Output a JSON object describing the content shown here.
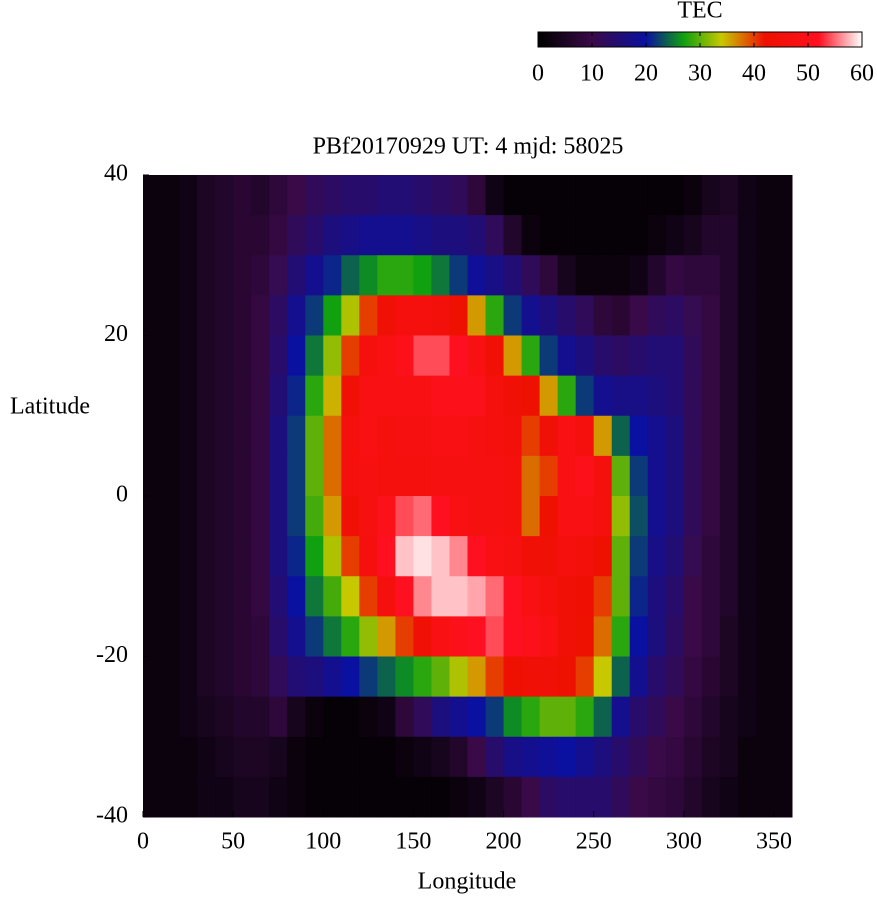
{
  "chart_data": {
    "type": "heatmap",
    "title": "PBf20170929  UT: 4  mjd: 58025",
    "x_label": "Longitude",
    "y_label": "Latitude",
    "colorbar_label": "TEC",
    "x": [
      0,
      10,
      20,
      30,
      40,
      50,
      60,
      70,
      80,
      90,
      100,
      110,
      120,
      130,
      140,
      150,
      160,
      170,
      180,
      190,
      200,
      210,
      220,
      230,
      240,
      250,
      260,
      270,
      280,
      290,
      300,
      310,
      320,
      330,
      340,
      350,
      360
    ],
    "y": [
      40,
      35,
      30,
      25,
      20,
      15,
      10,
      5,
      0,
      -5,
      -10,
      -15,
      -20,
      -25,
      -30,
      -35,
      -40
    ],
    "z": [
      [
        2,
        2,
        3,
        5,
        6,
        7,
        6,
        8,
        10,
        12,
        13,
        14,
        14,
        15,
        15,
        14,
        13,
        12,
        8,
        3,
        1,
        1,
        1,
        1,
        1,
        1,
        1,
        1,
        1,
        1,
        2,
        4,
        5,
        3,
        2,
        2
      ],
      [
        2,
        2,
        3,
        5,
        6,
        7,
        7,
        9,
        12,
        14,
        16,
        17,
        18,
        18,
        18,
        17,
        16,
        16,
        15,
        12,
        6,
        2,
        1,
        1,
        1,
        1,
        1,
        1,
        2,
        3,
        4,
        6,
        6,
        3,
        2,
        2
      ],
      [
        2,
        2,
        3,
        5,
        6,
        7,
        8,
        11,
        15,
        18,
        21,
        24,
        26,
        28,
        28,
        27,
        25,
        22,
        19,
        17,
        15,
        12,
        8,
        4,
        2,
        2,
        2,
        3,
        6,
        9,
        8,
        8,
        6,
        3,
        2,
        2
      ],
      [
        2,
        2,
        3,
        5,
        6,
        7,
        9,
        13,
        18,
        22,
        27,
        33,
        40,
        44,
        46,
        46,
        45,
        42,
        36,
        28,
        22,
        18,
        16,
        14,
        12,
        8,
        7,
        10,
        12,
        13,
        11,
        9,
        6,
        3,
        2,
        2
      ],
      [
        2,
        2,
        3,
        5,
        6,
        7,
        9,
        14,
        20,
        25,
        32,
        40,
        46,
        48,
        50,
        54,
        54,
        52,
        48,
        44,
        36,
        28,
        22,
        18,
        16,
        14,
        13,
        14,
        15,
        15,
        12,
        9,
        6,
        3,
        2,
        2
      ],
      [
        2,
        2,
        3,
        5,
        6,
        7,
        9,
        15,
        21,
        28,
        35,
        44,
        48,
        48,
        48,
        48,
        50,
        50,
        50,
        46,
        44,
        42,
        36,
        28,
        22,
        18,
        17,
        17,
        16,
        15,
        12,
        9,
        6,
        3,
        2,
        2
      ],
      [
        2,
        2,
        3,
        5,
        6,
        7,
        9,
        16,
        22,
        30,
        38,
        46,
        48,
        46,
        47,
        47,
        48,
        48,
        47,
        46,
        45,
        40,
        44,
        48,
        46,
        36,
        24,
        20,
        18,
        16,
        12,
        9,
        6,
        3,
        2,
        2
      ],
      [
        2,
        2,
        3,
        5,
        6,
        7,
        9,
        16,
        22,
        30,
        38,
        46,
        47,
        46,
        46,
        46,
        47,
        47,
        47,
        47,
        46,
        38,
        40,
        48,
        50,
        46,
        30,
        22,
        18,
        16,
        12,
        9,
        6,
        3,
        2,
        2
      ],
      [
        2,
        2,
        3,
        5,
        6,
        7,
        9,
        16,
        22,
        29,
        36,
        44,
        47,
        50,
        54,
        55,
        52,
        48,
        47,
        47,
        46,
        38,
        42,
        48,
        48,
        46,
        32,
        23,
        18,
        16,
        12,
        9,
        6,
        3,
        2,
        2
      ],
      [
        2,
        2,
        3,
        5,
        6,
        7,
        9,
        16,
        21,
        27,
        33,
        40,
        46,
        52,
        58,
        59,
        58,
        56,
        52,
        48,
        47,
        44,
        44,
        46,
        45,
        42,
        30,
        22,
        17,
        15,
        11,
        8,
        6,
        3,
        2,
        2
      ],
      [
        2,
        2,
        3,
        5,
        6,
        7,
        9,
        15,
        20,
        25,
        29,
        34,
        40,
        46,
        52,
        56,
        58,
        58,
        57,
        55,
        52,
        48,
        46,
        44,
        43,
        40,
        30,
        21,
        16,
        14,
        10,
        8,
        6,
        3,
        2,
        2
      ],
      [
        2,
        2,
        3,
        5,
        6,
        7,
        8,
        14,
        18,
        22,
        25,
        28,
        32,
        36,
        40,
        44,
        48,
        50,
        52,
        54,
        52,
        50,
        48,
        44,
        42,
        38,
        28,
        20,
        16,
        13,
        10,
        8,
        5,
        3,
        2,
        2
      ],
      [
        2,
        2,
        3,
        5,
        6,
        7,
        8,
        12,
        15,
        16,
        18,
        20,
        22,
        24,
        26,
        28,
        30,
        33,
        36,
        40,
        42,
        44,
        44,
        42,
        40,
        34,
        24,
        18,
        14,
        12,
        9,
        7,
        5,
        3,
        2,
        2
      ],
      [
        2,
        2,
        3,
        4,
        5,
        6,
        6,
        8,
        4,
        2,
        1,
        1,
        2,
        3,
        8,
        12,
        16,
        18,
        20,
        22,
        26,
        28,
        30,
        30,
        28,
        24,
        18,
        14,
        12,
        10,
        8,
        6,
        4,
        3,
        2,
        2
      ],
      [
        2,
        2,
        2,
        3,
        4,
        5,
        5,
        4,
        2,
        1,
        1,
        1,
        1,
        1,
        2,
        3,
        4,
        6,
        10,
        14,
        17,
        18,
        19,
        20,
        18,
        16,
        14,
        12,
        10,
        9,
        7,
        5,
        4,
        2,
        2,
        2
      ],
      [
        2,
        2,
        2,
        3,
        3,
        4,
        4,
        3,
        2,
        1,
        1,
        1,
        1,
        1,
        1,
        1,
        1,
        2,
        3,
        5,
        7,
        10,
        13,
        14,
        14,
        14,
        12,
        10,
        9,
        8,
        6,
        4,
        3,
        2,
        2,
        2
      ]
    ],
    "xlim": [
      0,
      360
    ],
    "ylim": [
      -40,
      40
    ],
    "xticks": [
      0,
      50,
      100,
      150,
      200,
      250,
      300,
      350
    ],
    "yticks": [
      -40,
      -20,
      0,
      20,
      40
    ],
    "zlim": [
      0,
      60
    ],
    "zticks": [
      0,
      10,
      20,
      30,
      40,
      50,
      60
    ],
    "colormap": [
      [
        0,
        "#000000"
      ],
      [
        10,
        "#3a0a48"
      ],
      [
        20,
        "#0a10a0"
      ],
      [
        27,
        "#10a010"
      ],
      [
        34,
        "#c8c800"
      ],
      [
        42,
        "#ee1000"
      ],
      [
        52,
        "#ff1020"
      ],
      [
        60,
        "#ffffff"
      ]
    ]
  }
}
